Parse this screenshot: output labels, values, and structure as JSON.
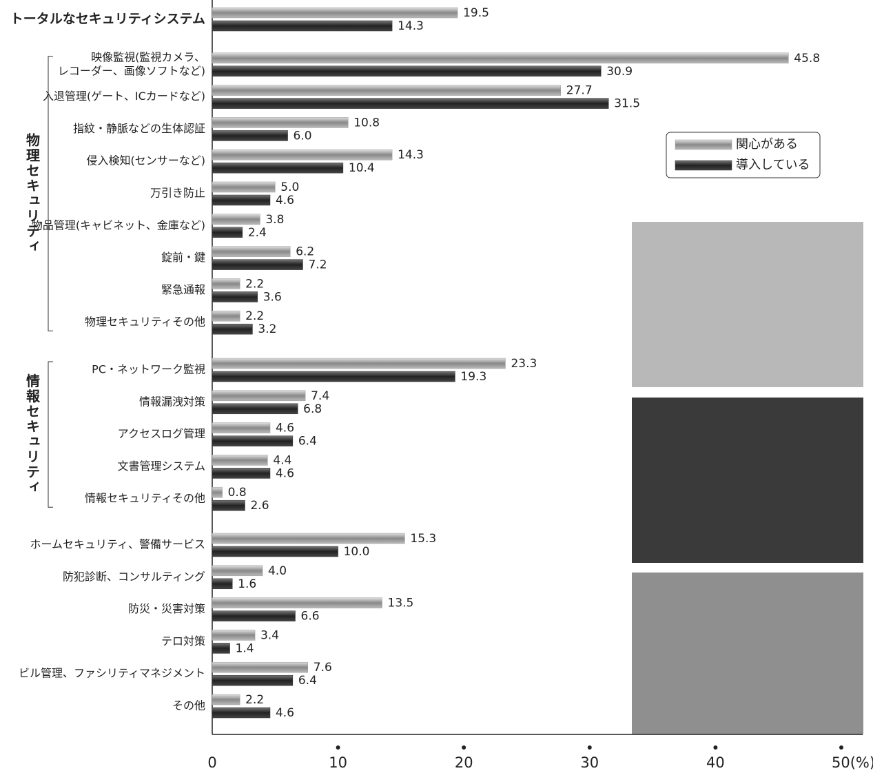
{
  "chart_data": {
    "type": "bar",
    "orientation": "horizontal",
    "categories": [
      "トータルなセキュリティシステム",
      [
        "映像監視(監視カメラ、",
        "レコーダー、画像ソフトなど)"
      ],
      "入退管理(ゲート、ICカードなど)",
      "指紋・静脈などの生体認証",
      "侵入検知(センサーなど)",
      "万引き防止",
      "物品管理(キャビネット、金庫など)",
      "錠前・鍵",
      "緊急通報",
      "物理セキュリティその他",
      "PC・ネットワーク監視",
      "情報漏洩対策",
      "アクセスログ管理",
      "文書管理システム",
      "情報セキュリティその他",
      "ホームセキュリティ、警備サービス",
      "防犯診断、コンサルティング",
      "防災・災害対策",
      "テロ対策",
      "ビル管理、ファシリティマネジメント",
      "その他"
    ],
    "groups": [
      "物理セキュリティ",
      "情報セキュリティ"
    ],
    "series": [
      {
        "name": "関心がある",
        "color": "#9a9a9a",
        "values": [
          19.5,
          45.8,
          27.7,
          10.8,
          14.3,
          5.0,
          3.8,
          6.2,
          2.2,
          2.2,
          23.3,
          7.4,
          4.6,
          4.4,
          0.8,
          15.3,
          4.0,
          13.5,
          3.4,
          7.6,
          2.2
        ],
        "value_labels": [
          "19.5",
          "45.8",
          "27.7",
          "10.8",
          "14.3",
          "5.0",
          "3.8",
          "6.2",
          "2.2",
          "2.2",
          "23.3",
          "7.4",
          "4.6",
          "4.4",
          "0.8",
          "15.3",
          "4.0",
          "13.5",
          "3.4",
          "7.6",
          "2.2"
        ]
      },
      {
        "name": "導入している",
        "color": "#333333",
        "values": [
          14.3,
          30.9,
          31.5,
          6.0,
          10.4,
          4.6,
          2.4,
          7.2,
          3.6,
          3.2,
          19.3,
          6.8,
          6.4,
          4.6,
          2.6,
          10.0,
          1.6,
          6.6,
          1.4,
          6.4,
          4.6
        ],
        "value_labels": [
          "14.3",
          "30.9",
          "31.5",
          "6.0",
          "10.4",
          "4.6",
          "2.4",
          "7.2",
          "3.6",
          "3.2",
          "19.3",
          "6.8",
          "6.4",
          "4.6",
          "2.6",
          "10.0",
          "1.6",
          "6.6",
          "1.4",
          "6.4",
          "4.6"
        ]
      }
    ],
    "xlim": [
      0,
      50
    ],
    "xticks": [
      0,
      10,
      20,
      30,
      40,
      {
        "value": 50,
        "label": "50(%)"
      }
    ],
    "legend": "upper right"
  }
}
